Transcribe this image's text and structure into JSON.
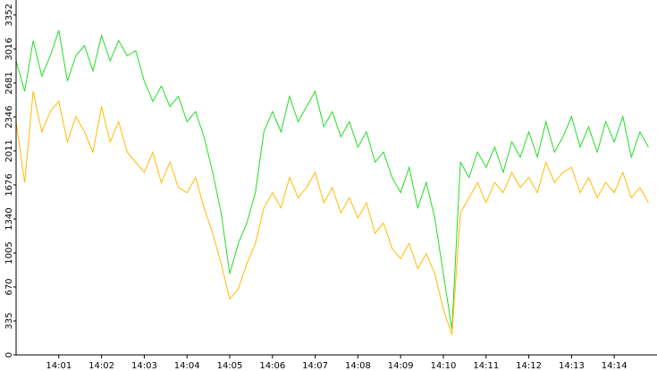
{
  "chart_data": {
    "type": "line",
    "x": [
      0,
      0.2,
      0.4,
      0.6,
      0.8,
      1,
      1.2,
      1.4,
      1.6,
      1.8,
      2,
      2.2,
      2.4,
      2.6,
      2.8,
      3,
      3.2,
      3.4,
      3.6,
      3.8,
      4,
      4.2,
      4.4,
      4.6,
      4.8,
      5,
      5.2,
      5.4,
      5.6,
      5.8,
      6,
      6.2,
      6.4,
      6.6,
      6.8,
      7,
      7.2,
      7.4,
      7.6,
      7.8,
      8,
      8.2,
      8.4,
      8.6,
      8.8,
      9,
      9.2,
      9.4,
      9.6,
      9.8,
      10,
      10.2,
      10.4,
      10.6,
      10.8,
      11,
      11.2,
      11.4,
      11.6,
      11.8,
      12,
      12.2,
      12.4,
      12.6,
      12.8,
      13,
      13.2,
      13.4,
      13.6,
      13.8,
      14,
      14.2,
      14.4,
      14.6,
      14.8
    ],
    "series": [
      {
        "color": "#22dd22",
        "values": [
          2900,
          2600,
          3100,
          2750,
          2950,
          3200,
          2700,
          2950,
          3050,
          2800,
          3150,
          2900,
          3100,
          2950,
          3000,
          2700,
          2500,
          2650,
          2450,
          2550,
          2300,
          2400,
          2150,
          1800,
          1400,
          800,
          1100,
          1300,
          1600,
          2200,
          2400,
          2200,
          2550,
          2300,
          2450,
          2600,
          2250,
          2400,
          2150,
          2300,
          2050,
          2200,
          1900,
          2000,
          1750,
          1600,
          1850,
          1450,
          1700,
          1350,
          800,
          250,
          1900,
          1750,
          2000,
          1850,
          2050,
          1800,
          2100,
          1950,
          2200,
          1950,
          2300,
          2000,
          2150,
          2350,
          2050,
          2250,
          2000,
          2300,
          2100,
          2350,
          1950,
          2200,
          2050
        ]
      },
      {
        "color": "#ffbb00",
        "values": [
          2300,
          1700,
          2600,
          2200,
          2400,
          2500,
          2100,
          2350,
          2200,
          2000,
          2450,
          2100,
          2300,
          2000,
          1900,
          1800,
          2000,
          1700,
          1900,
          1650,
          1600,
          1750,
          1450,
          1200,
          900,
          550,
          650,
          900,
          1100,
          1450,
          1600,
          1450,
          1750,
          1550,
          1650,
          1800,
          1500,
          1650,
          1400,
          1550,
          1350,
          1500,
          1200,
          1300,
          1050,
          950,
          1100,
          850,
          1000,
          800,
          450,
          200,
          1400,
          1550,
          1700,
          1500,
          1700,
          1600,
          1800,
          1650,
          1750,
          1600,
          1900,
          1700,
          1800,
          1850,
          1600,
          1750,
          1550,
          1700,
          1600,
          1800,
          1550,
          1650,
          1500
        ]
      }
    ],
    "xlim": [
      0,
      15
    ],
    "xticks": [
      {
        "value": 1,
        "label": "14:01"
      },
      {
        "value": 2,
        "label": "14:02"
      },
      {
        "value": 3,
        "label": "14:03"
      },
      {
        "value": 4,
        "label": "14:04"
      },
      {
        "value": 5,
        "label": "14:05"
      },
      {
        "value": 6,
        "label": "14:06"
      },
      {
        "value": 7,
        "label": "14:07"
      },
      {
        "value": 8,
        "label": "14:08"
      },
      {
        "value": 9,
        "label": "14:09"
      },
      {
        "value": 10,
        "label": "14:10"
      },
      {
        "value": 11,
        "label": "14:11"
      },
      {
        "value": 12,
        "label": "14:12"
      },
      {
        "value": 13,
        "label": "14:13"
      },
      {
        "value": 14,
        "label": "14:14"
      }
    ],
    "ylim": [
      0,
      3500
    ],
    "yticks": [
      0,
      335,
      670,
      1005,
      1340,
      1676,
      2011,
      2346,
      2681,
      3016,
      3352
    ]
  }
}
